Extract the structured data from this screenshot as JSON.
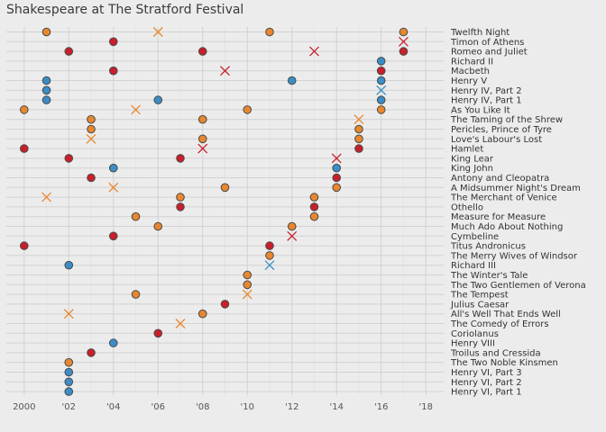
{
  "chart_data": {
    "type": "scatter",
    "title": "Shakespeare at The Stratford Festival",
    "xlabel": "",
    "ylabel": "",
    "xlim": [
      1999.2,
      2018.8
    ],
    "x_ticks": [
      2000,
      2002,
      2004,
      2006,
      2008,
      2010,
      2012,
      2014,
      2016,
      2018
    ],
    "x_tick_labels": [
      "2000",
      "'02",
      "'04",
      "'06",
      "'08",
      "'10",
      "'12",
      "'14",
      "'16",
      "'18"
    ],
    "grid": true,
    "legend": "none",
    "series_colors": {
      "comedy": "#e8872f",
      "tragedy": "#c81f2b",
      "history": "#3a8dc6"
    },
    "marker_meaning": {
      "circle": "production",
      "x": "production (cross marker)"
    },
    "plays": [
      {
        "name": "Twelfth Night",
        "genre": "comedy",
        "circles": [
          2001,
          2011,
          2017
        ],
        "crosses": [
          2006
        ]
      },
      {
        "name": "Timon of Athens",
        "genre": "tragedy",
        "circles": [
          2004
        ],
        "crosses": [
          2017
        ]
      },
      {
        "name": "Romeo and Juliet",
        "genre": "tragedy",
        "circles": [
          2002,
          2008,
          2017
        ],
        "crosses": [
          2013
        ]
      },
      {
        "name": "Richard II",
        "genre": "history",
        "circles": [
          2016
        ],
        "crosses": []
      },
      {
        "name": "Macbeth",
        "genre": "tragedy",
        "circles": [
          2004,
          2016
        ],
        "crosses": [
          2009
        ]
      },
      {
        "name": "Henry V",
        "genre": "history",
        "circles": [
          2001,
          2012,
          2016
        ],
        "crosses": []
      },
      {
        "name": "Henry IV, Part 2",
        "genre": "history",
        "circles": [
          2001
        ],
        "crosses": [
          2016
        ]
      },
      {
        "name": "Henry IV, Part 1",
        "genre": "history",
        "circles": [
          2001,
          2006,
          2016
        ],
        "crosses": []
      },
      {
        "name": "As You Like It",
        "genre": "comedy",
        "circles": [
          2000,
          2010,
          2016
        ],
        "crosses": [
          2005
        ]
      },
      {
        "name": "The Taming of the Shrew",
        "genre": "comedy",
        "circles": [
          2003,
          2008
        ],
        "crosses": [
          2015
        ]
      },
      {
        "name": "Pericles, Prince of Tyre",
        "genre": "comedy",
        "circles": [
          2003,
          2015
        ],
        "crosses": []
      },
      {
        "name": "Love's Labour's Lost",
        "genre": "comedy",
        "circles": [
          2008,
          2015
        ],
        "crosses": [
          2003
        ]
      },
      {
        "name": "Hamlet",
        "genre": "tragedy",
        "circles": [
          2000,
          2015
        ],
        "crosses": [
          2008
        ]
      },
      {
        "name": "King Lear",
        "genre": "tragedy",
        "circles": [
          2002,
          2007
        ],
        "crosses": [
          2014
        ]
      },
      {
        "name": "King John",
        "genre": "history",
        "circles": [
          2004,
          2014
        ],
        "crosses": []
      },
      {
        "name": "Antony and Cleopatra",
        "genre": "tragedy",
        "circles": [
          2003,
          2014
        ],
        "crosses": []
      },
      {
        "name": "A Midsummer Night's Dream",
        "genre": "comedy",
        "circles": [
          2009,
          2014
        ],
        "crosses": [
          2004
        ]
      },
      {
        "name": "The Merchant of Venice",
        "genre": "comedy",
        "circles": [
          2007,
          2013
        ],
        "crosses": [
          2001
        ]
      },
      {
        "name": "Othello",
        "genre": "tragedy",
        "circles": [
          2007,
          2013
        ],
        "crosses": []
      },
      {
        "name": "Measure for Measure",
        "genre": "comedy",
        "circles": [
          2005,
          2013
        ],
        "crosses": []
      },
      {
        "name": "Much Ado About Nothing",
        "genre": "comedy",
        "circles": [
          2006,
          2012
        ],
        "crosses": []
      },
      {
        "name": "Cymbeline",
        "genre": "tragedy",
        "circles": [
          2004
        ],
        "crosses": [
          2012
        ]
      },
      {
        "name": "Titus Andronicus",
        "genre": "tragedy",
        "circles": [
          2000,
          2011
        ],
        "crosses": []
      },
      {
        "name": "The Merry Wives of Windsor",
        "genre": "comedy",
        "circles": [
          2011
        ],
        "crosses": []
      },
      {
        "name": "Richard III",
        "genre": "history",
        "circles": [
          2002
        ],
        "crosses": [
          2011
        ]
      },
      {
        "name": "The Winter's Tale",
        "genre": "comedy",
        "circles": [
          2010
        ],
        "crosses": []
      },
      {
        "name": "The Two Gentlemen of Verona",
        "genre": "comedy",
        "circles": [
          2010
        ],
        "crosses": []
      },
      {
        "name": "The Tempest",
        "genre": "comedy",
        "circles": [
          2005
        ],
        "crosses": [
          2010
        ]
      },
      {
        "name": "Julius Caesar",
        "genre": "tragedy",
        "circles": [
          2009
        ],
        "crosses": []
      },
      {
        "name": "All's Well That Ends Well",
        "genre": "comedy",
        "circles": [
          2008
        ],
        "crosses": [
          2002
        ]
      },
      {
        "name": "The Comedy of Errors",
        "genre": "comedy",
        "circles": [],
        "crosses": [
          2007
        ]
      },
      {
        "name": "Coriolanus",
        "genre": "tragedy",
        "circles": [
          2006
        ],
        "crosses": []
      },
      {
        "name": "Henry VIII",
        "genre": "history",
        "circles": [
          2004
        ],
        "crosses": []
      },
      {
        "name": "Troilus and Cressida",
        "genre": "tragedy",
        "circles": [
          2003
        ],
        "crosses": []
      },
      {
        "name": "The Two Noble Kinsmen",
        "genre": "comedy",
        "circles": [
          2002
        ],
        "crosses": []
      },
      {
        "name": "Henry VI, Part 3",
        "genre": "history",
        "circles": [
          2002
        ],
        "crosses": []
      },
      {
        "name": "Henry VI, Part 2",
        "genre": "history",
        "circles": [
          2002
        ],
        "crosses": []
      },
      {
        "name": "Henry VI, Part 1",
        "genre": "history",
        "circles": [
          2002
        ],
        "crosses": []
      }
    ]
  }
}
